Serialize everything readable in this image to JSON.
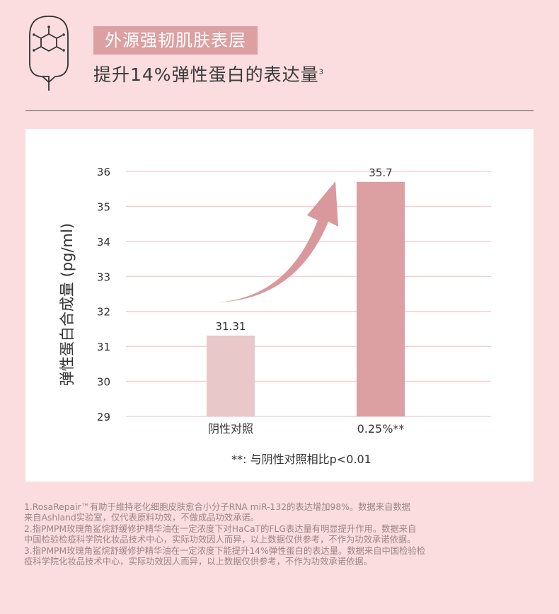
{
  "header": {
    "logo_icon": "molecule-y-icon",
    "title": "外源强韧肌肤表层",
    "subtitle": "提升14%弹性蛋白的表达量",
    "subtitle_sup": "3"
  },
  "chart_data": {
    "type": "bar",
    "categories": [
      "阴性对照",
      "0.25%**"
    ],
    "values": [
      31.31,
      35.7
    ],
    "data_labels": [
      "31.31",
      "35.7"
    ],
    "ylabel": "弹性蛋白合成量 (pg/ml)",
    "ylim": [
      29,
      36
    ],
    "yticks": [
      29,
      30,
      31,
      32,
      33,
      34,
      35,
      36
    ],
    "grid": true,
    "bar_colors": [
      "#e9c8c9",
      "#dc9fa2"
    ],
    "grid_color": "#f1d3d5",
    "arrow_color": "#d9989c",
    "annotation": "**: 与阴性对照相比p<0.01"
  },
  "footnotes": [
    "1.RosaRepair™有助于维持老化细胞皮肤愈合小分子RNA miR-132的表达增加98%。数据来自数据",
    "来自Ashland实验室，仅代表原料功效，不做成品功效承诺。",
    "2.指PMPM玫瑰角鲨烷舒缓修护精华油在一定浓度下对HaCaT的FLG表达量有明显提升作用。数据来自",
    "中国检验检疫科学院化妆品技术中心，实际功效因人而异，以上数据仅供参考，不作为功效承诺依据。",
    "3.指PMPM玫瑰角鲨烷舒缓修护精华油在一定浓度下能提升14%弹性蛋白的表达量。数据来自中国检验检",
    "疫科学院化妆品技术中心，实际功效因人而异，以上数据仅供参考，不作为功效承诺依据。"
  ]
}
